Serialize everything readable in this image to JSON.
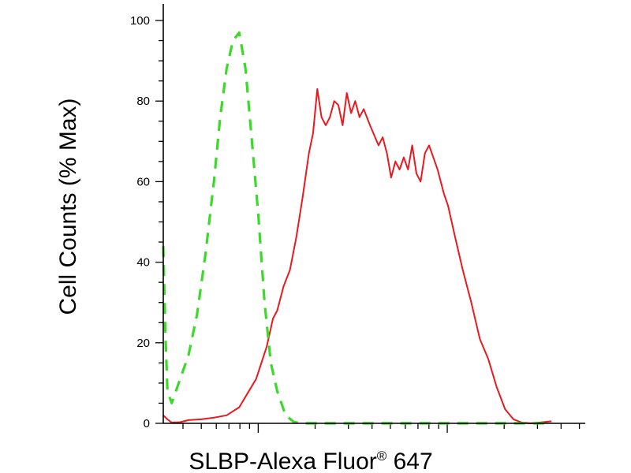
{
  "chart_data": {
    "type": "line",
    "title": "",
    "ylabel": "Cell Counts (% Max)",
    "xlabel_main": "SLBP-Alexa Fluor",
    "xlabel_sup": "®",
    "xlabel_tail": " 647",
    "x_scale": "log",
    "ylim": [
      0,
      100
    ],
    "y_ticks": [
      0,
      20,
      40,
      60,
      80,
      100
    ],
    "y_tick_labels": [
      "0",
      "20",
      "40",
      "60",
      "80",
      "100"
    ],
    "grid": false,
    "legend": "none",
    "series": [
      {
        "style": "solid",
        "color": "#e8191f",
        "points": [
          [
            0.0,
            2.0
          ],
          [
            0.01,
            1.0
          ],
          [
            0.02,
            0.2
          ],
          [
            0.04,
            0.3
          ],
          [
            0.06,
            0.8
          ],
          [
            0.09,
            1.0
          ],
          [
            0.12,
            1.4
          ],
          [
            0.15,
            2.0
          ],
          [
            0.18,
            4.0
          ],
          [
            0.2,
            7.5
          ],
          [
            0.22,
            11.0
          ],
          [
            0.245,
            19.0
          ],
          [
            0.26,
            26.0
          ],
          [
            0.27,
            28.0
          ],
          [
            0.285,
            34.0
          ],
          [
            0.3,
            38.0
          ],
          [
            0.315,
            46.0
          ],
          [
            0.33,
            56.0
          ],
          [
            0.345,
            67.0
          ],
          [
            0.355,
            72.0
          ],
          [
            0.365,
            83.0
          ],
          [
            0.375,
            76.0
          ],
          [
            0.385,
            74.0
          ],
          [
            0.395,
            76.0
          ],
          [
            0.405,
            80.0
          ],
          [
            0.415,
            79.0
          ],
          [
            0.425,
            74.0
          ],
          [
            0.435,
            82.0
          ],
          [
            0.445,
            77.0
          ],
          [
            0.455,
            80.0
          ],
          [
            0.465,
            76.0
          ],
          [
            0.475,
            78.0
          ],
          [
            0.49,
            74.0
          ],
          [
            0.51,
            69.0
          ],
          [
            0.52,
            71.0
          ],
          [
            0.53,
            67.0
          ],
          [
            0.54,
            61.0
          ],
          [
            0.55,
            65.0
          ],
          [
            0.56,
            63.0
          ],
          [
            0.57,
            66.0
          ],
          [
            0.58,
            63.0
          ],
          [
            0.59,
            69.0
          ],
          [
            0.6,
            62.0
          ],
          [
            0.61,
            60.0
          ],
          [
            0.62,
            67.0
          ],
          [
            0.63,
            69.0
          ],
          [
            0.64,
            66.0
          ],
          [
            0.65,
            63.0
          ],
          [
            0.665,
            57.0
          ],
          [
            0.675,
            54.0
          ],
          [
            0.69,
            47.0
          ],
          [
            0.71,
            38.0
          ],
          [
            0.73,
            30.0
          ],
          [
            0.75,
            21.0
          ],
          [
            0.77,
            16.0
          ],
          [
            0.79,
            9.0
          ],
          [
            0.81,
            3.5
          ],
          [
            0.83,
            1.0
          ],
          [
            0.85,
            0.2
          ],
          [
            0.87,
            0.0
          ],
          [
            0.9,
            0.3
          ],
          [
            0.92,
            0.5
          ]
        ]
      },
      {
        "style": "dashed",
        "color": "#3cd92a",
        "points": [
          [
            0.0,
            44.0
          ],
          [
            0.005,
            22.0
          ],
          [
            0.01,
            8.0
          ],
          [
            0.02,
            5.0
          ],
          [
            0.04,
            11.0
          ],
          [
            0.06,
            17.0
          ],
          [
            0.08,
            27.0
          ],
          [
            0.1,
            42.0
          ],
          [
            0.12,
            60.0
          ],
          [
            0.135,
            76.0
          ],
          [
            0.15,
            88.0
          ],
          [
            0.165,
            95.0
          ],
          [
            0.18,
            97.0
          ],
          [
            0.195,
            88.0
          ],
          [
            0.21,
            70.0
          ],
          [
            0.225,
            52.0
          ],
          [
            0.24,
            30.0
          ],
          [
            0.255,
            15.0
          ],
          [
            0.27,
            8.0
          ],
          [
            0.29,
            2.0
          ],
          [
            0.31,
            0.3
          ],
          [
            0.33,
            0.0
          ],
          [
            0.6,
            0.0
          ],
          [
            0.92,
            0.0
          ]
        ]
      }
    ]
  }
}
